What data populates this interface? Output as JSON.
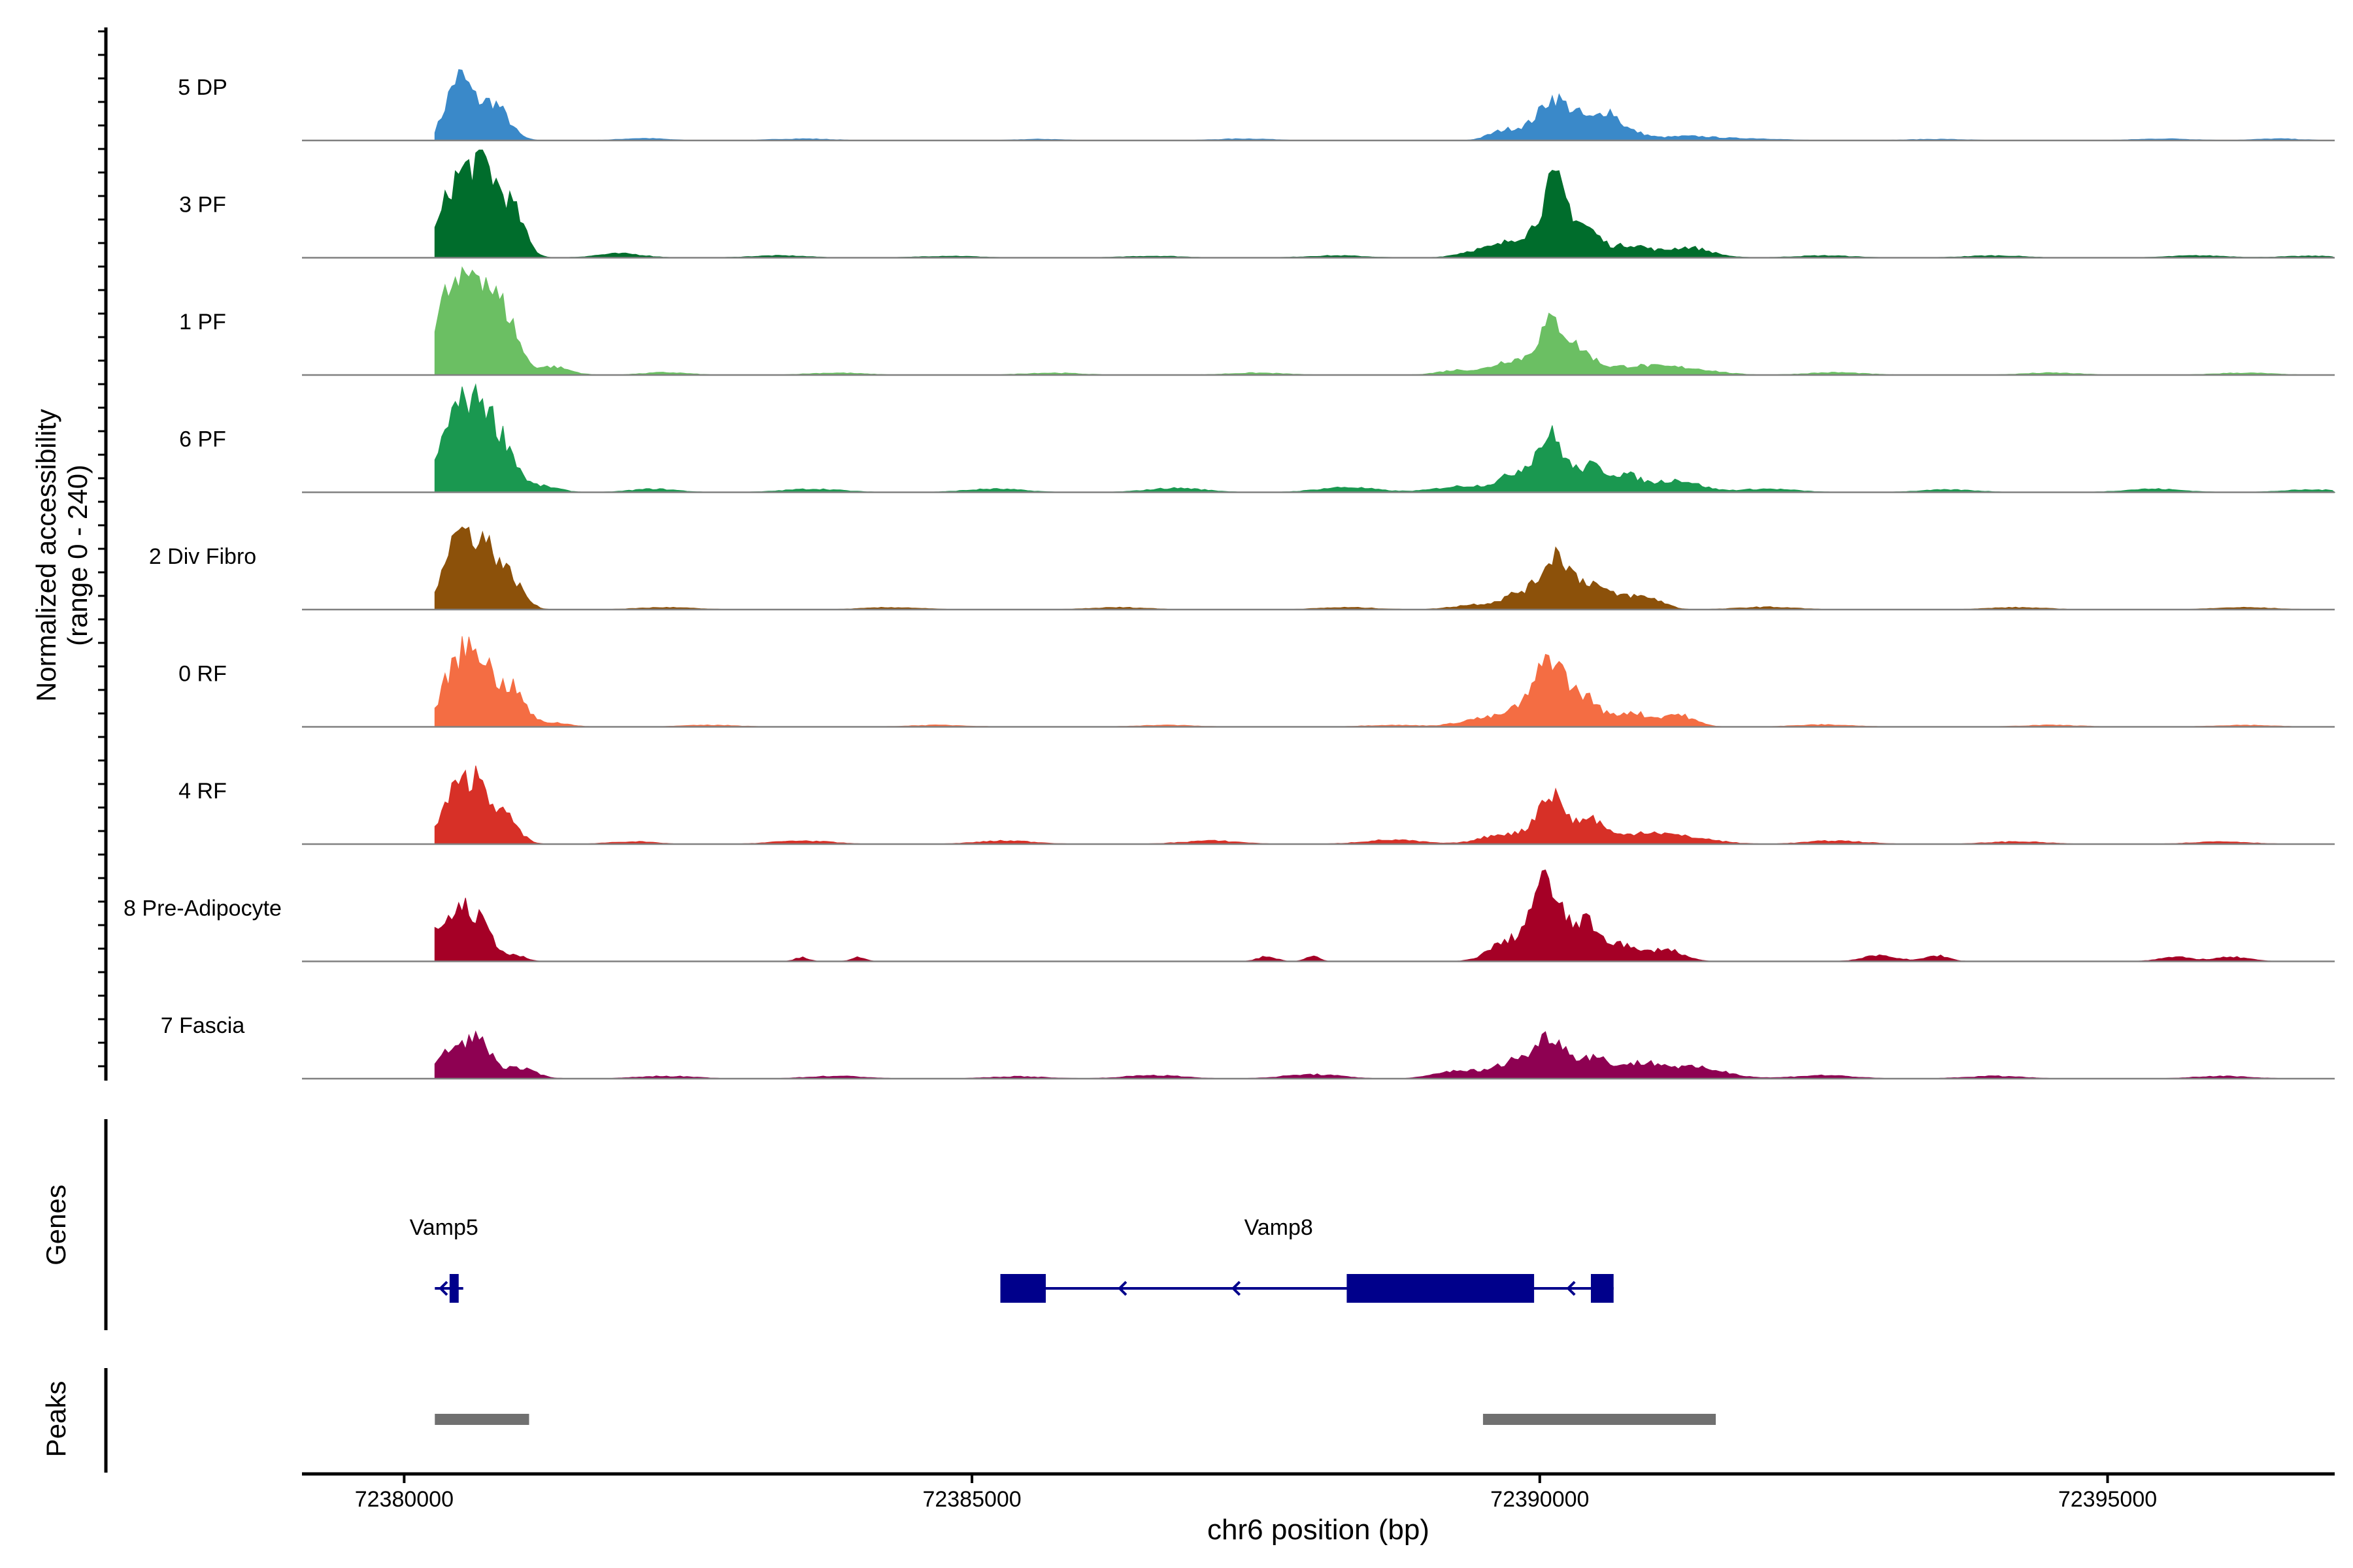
{
  "chart_data": {
    "type": "area",
    "title": "",
    "ylabel_line1": "Normalized accessibility",
    "ylabel_line2": "(range 0 - 240)",
    "xlabel": "chr6 position (bp)",
    "xlim": [
      72379100,
      72397000
    ],
    "ylim": [
      0,
      240
    ],
    "x_ticks": [
      72380000,
      72385000,
      72390000,
      72395000
    ],
    "x_tick_labels": [
      "72380000",
      "72385000",
      "72390000",
      "72395000"
    ],
    "series": [
      {
        "name": "5 DP",
        "color": "#3A89C9",
        "peaks": [
          [
            72380480,
            150,
            110
          ],
          [
            72380780,
            90,
            130
          ],
          [
            72382100,
            5,
            200
          ],
          [
            72383500,
            4,
            250
          ],
          [
            72385600,
            3,
            200
          ],
          [
            72387400,
            4,
            250
          ],
          [
            72389650,
            18,
            120
          ],
          [
            72389900,
            28,
            140
          ],
          [
            72390120,
            90,
            110
          ],
          [
            72390350,
            55,
            110
          ],
          [
            72390600,
            65,
            90
          ],
          [
            72390800,
            20,
            120
          ],
          [
            72391300,
            10,
            250
          ],
          [
            72391900,
            4,
            250
          ],
          [
            72393500,
            3,
            250
          ],
          [
            72395500,
            4,
            250
          ],
          [
            72396500,
            4,
            200
          ]
        ]
      },
      {
        "name": "3 PF",
        "color": "#006D2C",
        "peaks": [
          [
            72380450,
            170,
            130
          ],
          [
            72380700,
            200,
            120
          ],
          [
            72380950,
            110,
            110
          ],
          [
            72381900,
            10,
            200
          ],
          [
            72383300,
            5,
            250
          ],
          [
            72384800,
            4,
            250
          ],
          [
            72386600,
            4,
            250
          ],
          [
            72388200,
            5,
            250
          ],
          [
            72389500,
            20,
            180
          ],
          [
            72389850,
            45,
            150
          ],
          [
            72390130,
            170,
            110
          ],
          [
            72390400,
            70,
            130
          ],
          [
            72390800,
            30,
            150
          ],
          [
            72391300,
            25,
            200
          ],
          [
            72392500,
            5,
            250
          ],
          [
            72394000,
            5,
            250
          ],
          [
            72395800,
            5,
            250
          ],
          [
            72396800,
            4,
            250
          ]
        ]
      },
      {
        "name": "1 PF",
        "color": "#6BBF63",
        "peaks": [
          [
            72380380,
            180,
            120
          ],
          [
            72380650,
            240,
            120
          ],
          [
            72380900,
            130,
            110
          ],
          [
            72381300,
            20,
            150
          ],
          [
            72382300,
            6,
            200
          ],
          [
            72383800,
            5,
            250
          ],
          [
            72385700,
            5,
            250
          ],
          [
            72387500,
            5,
            250
          ],
          [
            72389300,
            12,
            180
          ],
          [
            72389750,
            35,
            150
          ],
          [
            72390100,
            120,
            120
          ],
          [
            72390350,
            50,
            130
          ],
          [
            72390800,
            20,
            250
          ],
          [
            72391300,
            15,
            250
          ],
          [
            72392600,
            6,
            250
          ],
          [
            72394500,
            5,
            250
          ],
          [
            72396200,
            5,
            250
          ]
        ]
      },
      {
        "name": "6 PF",
        "color": "#1A9850",
        "peaks": [
          [
            72380420,
            170,
            110
          ],
          [
            72380650,
            215,
            110
          ],
          [
            72380880,
            110,
            110
          ],
          [
            72381200,
            15,
            150
          ],
          [
            72382200,
            8,
            200
          ],
          [
            72383600,
            8,
            250
          ],
          [
            72385200,
            8,
            250
          ],
          [
            72386800,
            10,
            250
          ],
          [
            72388300,
            12,
            250
          ],
          [
            72389350,
            15,
            250
          ],
          [
            72389820,
            45,
            150
          ],
          [
            72390100,
            130,
            120
          ],
          [
            72390450,
            60,
            120
          ],
          [
            72390750,
            40,
            130
          ],
          [
            72391200,
            30,
            200
          ],
          [
            72392000,
            8,
            250
          ],
          [
            72393600,
            6,
            250
          ],
          [
            72395400,
            8,
            250
          ],
          [
            72396800,
            6,
            250
          ]
        ]
      },
      {
        "name": "2 Div Fibro",
        "color": "#8C510A",
        "peaks": [
          [
            72380450,
            160,
            120
          ],
          [
            72380700,
            150,
            130
          ],
          [
            72380950,
            60,
            110
          ],
          [
            72382300,
            5,
            250
          ],
          [
            72384300,
            5,
            250
          ],
          [
            72386300,
            5,
            250
          ],
          [
            72388300,
            5,
            250
          ],
          [
            72389450,
            12,
            200
          ],
          [
            72389850,
            40,
            150
          ],
          [
            72390150,
            130,
            120
          ],
          [
            72390450,
            60,
            120
          ],
          [
            72390750,
            30,
            130
          ],
          [
            72391000,
            22,
            120
          ],
          [
            72392000,
            6,
            250
          ],
          [
            72394200,
            5,
            250
          ],
          [
            72396200,
            5,
            250
          ]
        ]
      },
      {
        "name": "0 RF",
        "color": "#F46D43",
        "peaks": [
          [
            72380430,
            120,
            110
          ],
          [
            72380650,
            180,
            120
          ],
          [
            72380950,
            90,
            110
          ],
          [
            72381300,
            10,
            150
          ],
          [
            72382700,
            4,
            250
          ],
          [
            72384700,
            4,
            250
          ],
          [
            72386700,
            4,
            250
          ],
          [
            72388700,
            4,
            250
          ],
          [
            72389500,
            20,
            200
          ],
          [
            72389850,
            40,
            140
          ],
          [
            72390100,
            160,
            120
          ],
          [
            72390400,
            70,
            130
          ],
          [
            72390800,
            35,
            130
          ],
          [
            72391200,
            30,
            150
          ],
          [
            72392500,
            5,
            250
          ],
          [
            72394500,
            4,
            250
          ],
          [
            72396200,
            4,
            250
          ]
        ]
      },
      {
        "name": "4 RF",
        "color": "#D73027",
        "peaks": [
          [
            72380430,
            110,
            110
          ],
          [
            72380650,
            145,
            110
          ],
          [
            72380900,
            60,
            110
          ],
          [
            72382000,
            6,
            200
          ],
          [
            72383500,
            8,
            250
          ],
          [
            72385300,
            8,
            250
          ],
          [
            72387100,
            8,
            250
          ],
          [
            72388700,
            10,
            250
          ],
          [
            72389700,
            25,
            200
          ],
          [
            72390100,
            120,
            120
          ],
          [
            72390450,
            60,
            120
          ],
          [
            72390900,
            25,
            200
          ],
          [
            72391300,
            15,
            250
          ],
          [
            72392600,
            8,
            250
          ],
          [
            72394200,
            6,
            250
          ],
          [
            72396000,
            6,
            250
          ]
        ]
      },
      {
        "name": "8 Pre-Adipocyte",
        "color": "#A50026",
        "peaks": [
          [
            72380300,
            60,
            100
          ],
          [
            72380500,
            110,
            110
          ],
          [
            72380700,
            70,
            110
          ],
          [
            72381000,
            12,
            80
          ],
          [
            72383500,
            10,
            60
          ],
          [
            72384000,
            10,
            60
          ],
          [
            72387600,
            12,
            80
          ],
          [
            72388000,
            12,
            60
          ],
          [
            72389700,
            45,
            150
          ],
          [
            72390050,
            190,
            130
          ],
          [
            72390400,
            90,
            120
          ],
          [
            72390700,
            40,
            130
          ],
          [
            72391100,
            30,
            150
          ],
          [
            72393000,
            14,
            150
          ],
          [
            72393500,
            14,
            100
          ],
          [
            72395600,
            10,
            150
          ],
          [
            72396100,
            10,
            150
          ]
        ]
      },
      {
        "name": "7 Fascia",
        "color": "#8E0152",
        "peaks": [
          [
            72380400,
            65,
            110
          ],
          [
            72380650,
            95,
            110
          ],
          [
            72381000,
            25,
            150
          ],
          [
            72382300,
            6,
            250
          ],
          [
            72383800,
            6,
            250
          ],
          [
            72385400,
            5,
            250
          ],
          [
            72386600,
            8,
            250
          ],
          [
            72388000,
            10,
            250
          ],
          [
            72389300,
            20,
            200
          ],
          [
            72389800,
            45,
            160
          ],
          [
            72390100,
            95,
            120
          ],
          [
            72390450,
            50,
            150
          ],
          [
            72390900,
            35,
            200
          ],
          [
            72391400,
            25,
            250
          ],
          [
            72392500,
            8,
            250
          ],
          [
            72394000,
            6,
            250
          ],
          [
            72396000,
            6,
            250
          ]
        ]
      }
    ],
    "genes_label": "Genes",
    "genes": [
      {
        "name": "Vamp5",
        "label_x": 72380350,
        "strand": "-",
        "start": 72380270,
        "end": 72380520,
        "exons": [
          [
            72380400,
            72380480
          ]
        ],
        "arrows": [
          72380320
        ]
      },
      {
        "name": "Vamp8",
        "label_x": 72387700,
        "strand": "-",
        "start": 72385250,
        "end": 72390650,
        "exons": [
          [
            72385250,
            72385650
          ],
          [
            72388300,
            72389950
          ],
          [
            72390450,
            72390650
          ]
        ],
        "arrows": [
          72386300,
          72387300,
          72390250
        ]
      }
    ],
    "peaks_label": "Peaks",
    "peaks": [
      [
        72380270,
        72381100
      ],
      [
        72389500,
        72391550
      ]
    ],
    "colors": {
      "axis": "#000000",
      "baseline": "#808080",
      "gene": "#00008B",
      "peak": "#707070"
    }
  }
}
